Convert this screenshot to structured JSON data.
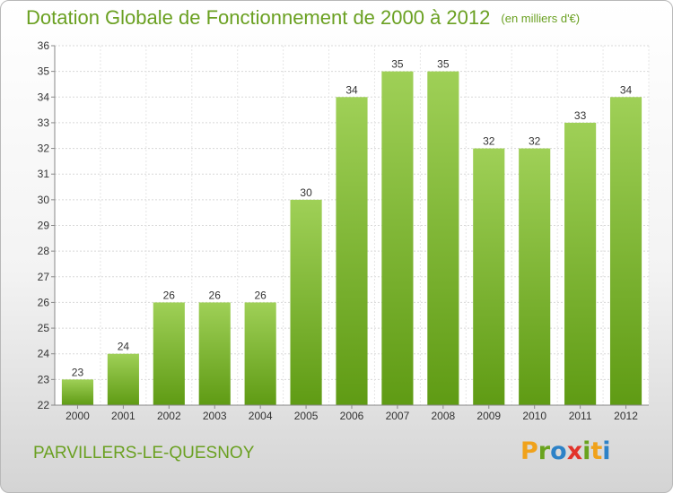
{
  "chart_data": {
    "type": "bar",
    "title": "Dotation Globale de Fonctionnement de 2000 à 2012",
    "subtitle": "(en milliers d'€)",
    "categories": [
      "2000",
      "2001",
      "2002",
      "2003",
      "2004",
      "2005",
      "2006",
      "2007",
      "2008",
      "2009",
      "2010",
      "2011",
      "2012"
    ],
    "values": [
      23,
      24,
      26,
      26,
      26,
      30,
      34,
      35,
      35,
      32,
      32,
      33,
      34
    ],
    "ylim": [
      22,
      36
    ],
    "yticks": [
      22,
      23,
      24,
      25,
      26,
      27,
      28,
      29,
      30,
      31,
      32,
      33,
      34,
      35,
      36
    ],
    "grid": true,
    "bar_color": "#7fb52e"
  },
  "footer": {
    "commune": "PARVILLERS-LE-QUESNOY",
    "logo": "Proxiti"
  }
}
